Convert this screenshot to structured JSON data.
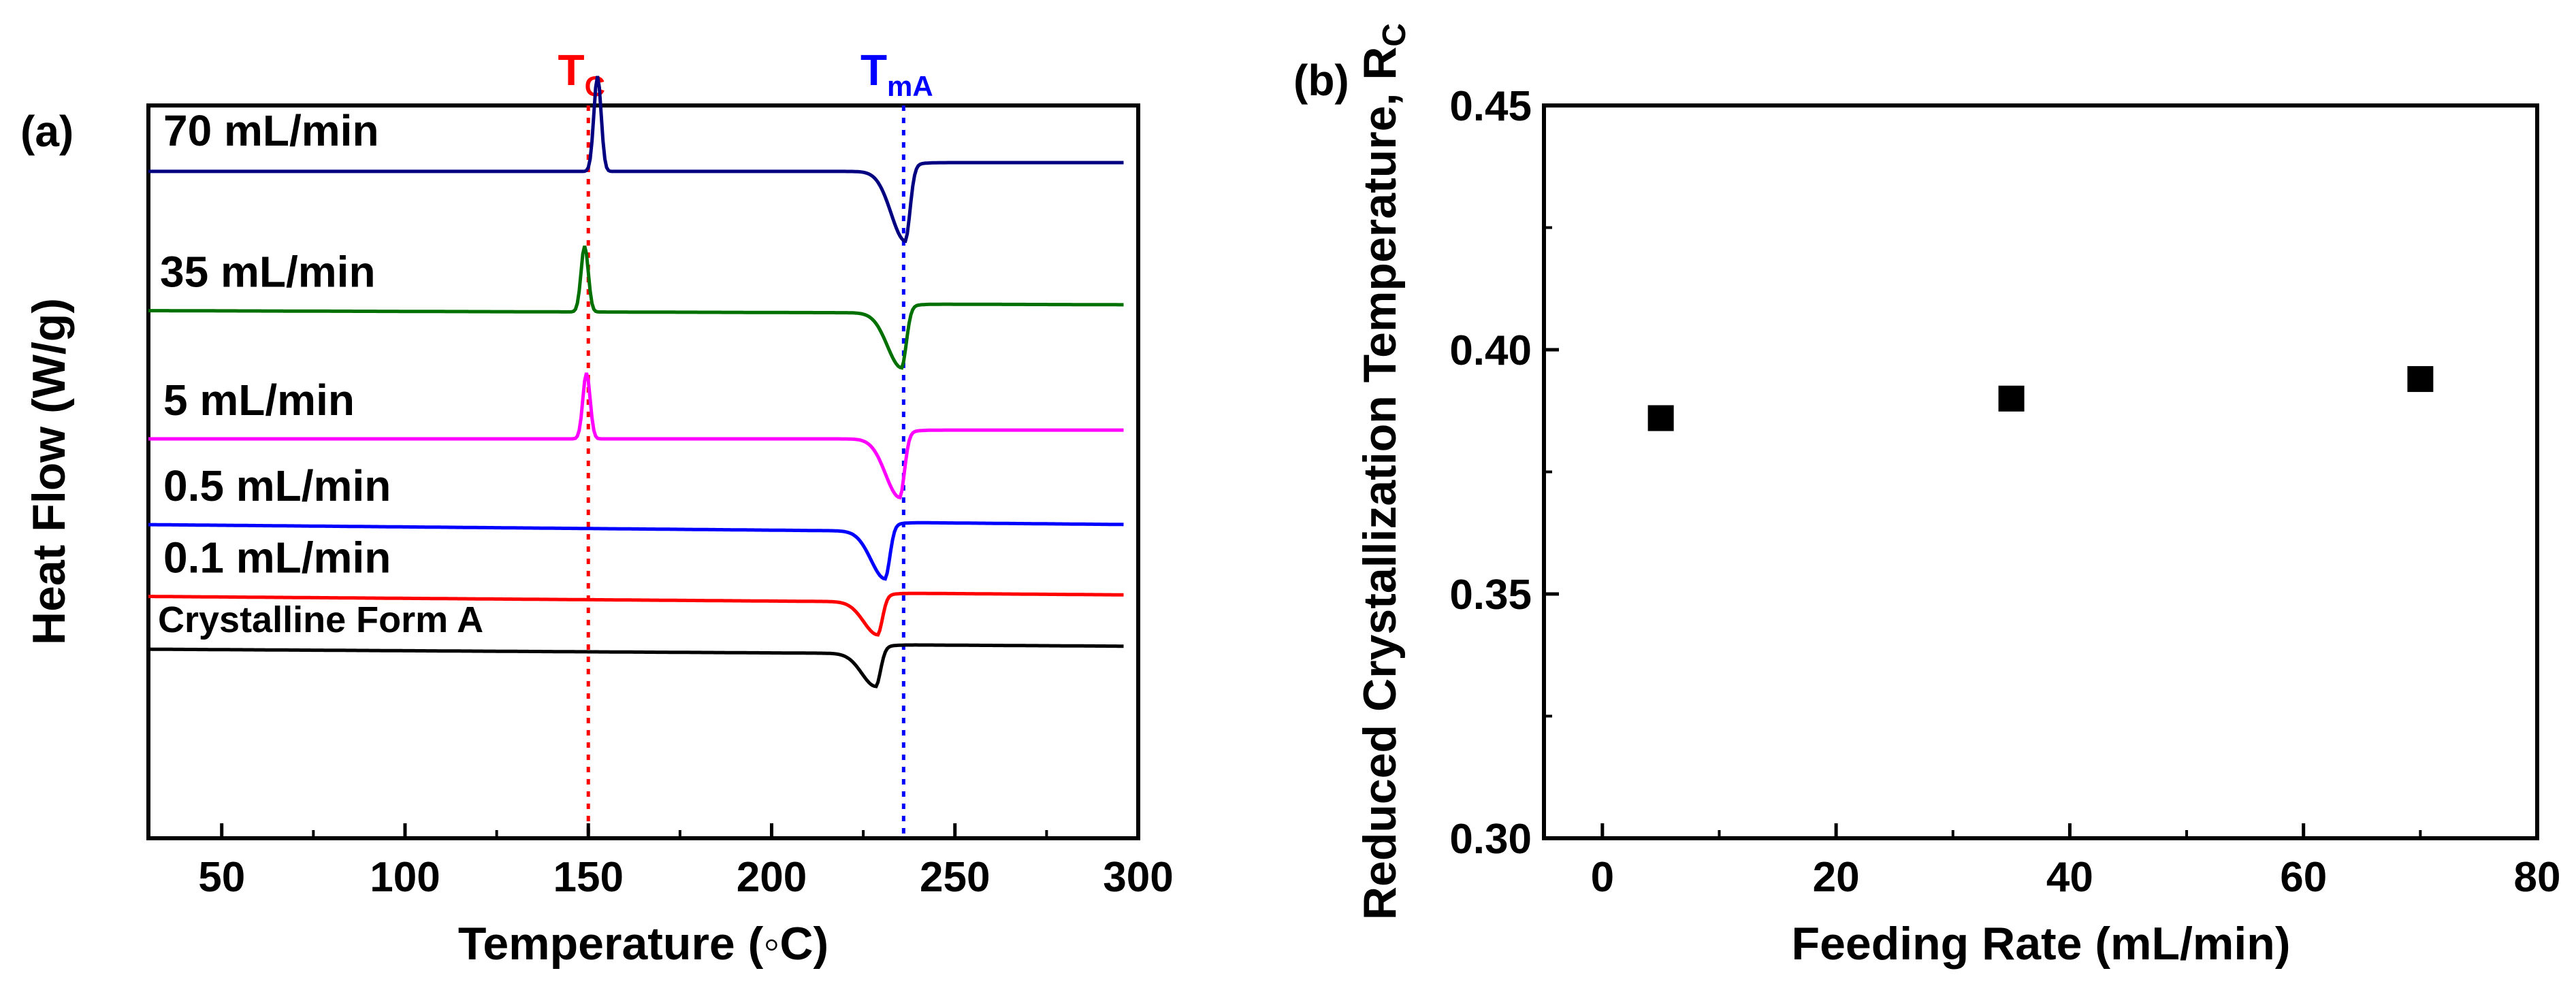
{
  "chart_data": [
    {
      "type": "line",
      "panel_label": "(a)",
      "xlabel": "Temperature (◦C)",
      "ylabel": "Heat Flow (W/g)",
      "xlim": [
        30,
        300
      ],
      "xticks": [
        "50",
        "100",
        "150",
        "200",
        "250",
        "300"
      ],
      "yticks": [],
      "grid": false,
      "markers": [
        {
          "name": "T",
          "sub": "C",
          "x": 150,
          "color": "#ff0000"
        },
        {
          "name": "T",
          "sub": "mA",
          "x": 236,
          "color": "#0000ff"
        }
      ],
      "series": [
        {
          "name": "70 mL/min",
          "color": "#000080",
          "baseline": 0.91,
          "peak": {
            "x": 152.5,
            "h": 0.13
          },
          "dip": {
            "x": 236.5,
            "d": 0.095
          },
          "slope": 0.0
        },
        {
          "name": "35 mL/min",
          "color": "#007000",
          "baseline": 0.72,
          "peak": {
            "x": 149,
            "h": 0.09
          },
          "dip": {
            "x": 235.5,
            "d": 0.075
          },
          "slope": -0.004
        },
        {
          "name": "5 mL/min",
          "color": "#ff00ff",
          "baseline": 0.545,
          "peak": {
            "x": 149.5,
            "h": 0.09
          },
          "dip": {
            "x": 235,
            "d": 0.08
          },
          "slope": 0.0
        },
        {
          "name": "0.5 mL/min",
          "color": "#0000ff",
          "baseline": 0.428,
          "peak": null,
          "dip": {
            "x": 231,
            "d": 0.065
          },
          "slope": -0.012
        },
        {
          "name": "0.1 mL/min",
          "color": "#ff0000",
          "baseline": 0.33,
          "peak": null,
          "dip": {
            "x": 229,
            "d": 0.045
          },
          "slope": -0.01
        },
        {
          "name": "Crystalline Form A",
          "color": "#000000",
          "baseline": 0.258,
          "peak": null,
          "dip": {
            "x": 228.5,
            "d": 0.045
          },
          "slope": -0.008
        }
      ]
    },
    {
      "type": "scatter",
      "panel_label": "(b)",
      "xlabel": "Feeding Rate (mL/min)",
      "ylabel": "Reduced Crystallization Temperature, R",
      "ylabel_sub": "C",
      "xlim": [
        -5,
        80
      ],
      "ylim": [
        0.3,
        0.45
      ],
      "xticks": [
        "0",
        "20",
        "40",
        "60",
        "80"
      ],
      "yticks": [
        "0.30",
        "0.35",
        "0.40",
        "0.45"
      ],
      "grid": false,
      "series": [
        {
          "name": "Rc",
          "x": [
            5,
            35,
            70
          ],
          "y": [
            0.386,
            0.39,
            0.394
          ]
        }
      ]
    }
  ]
}
